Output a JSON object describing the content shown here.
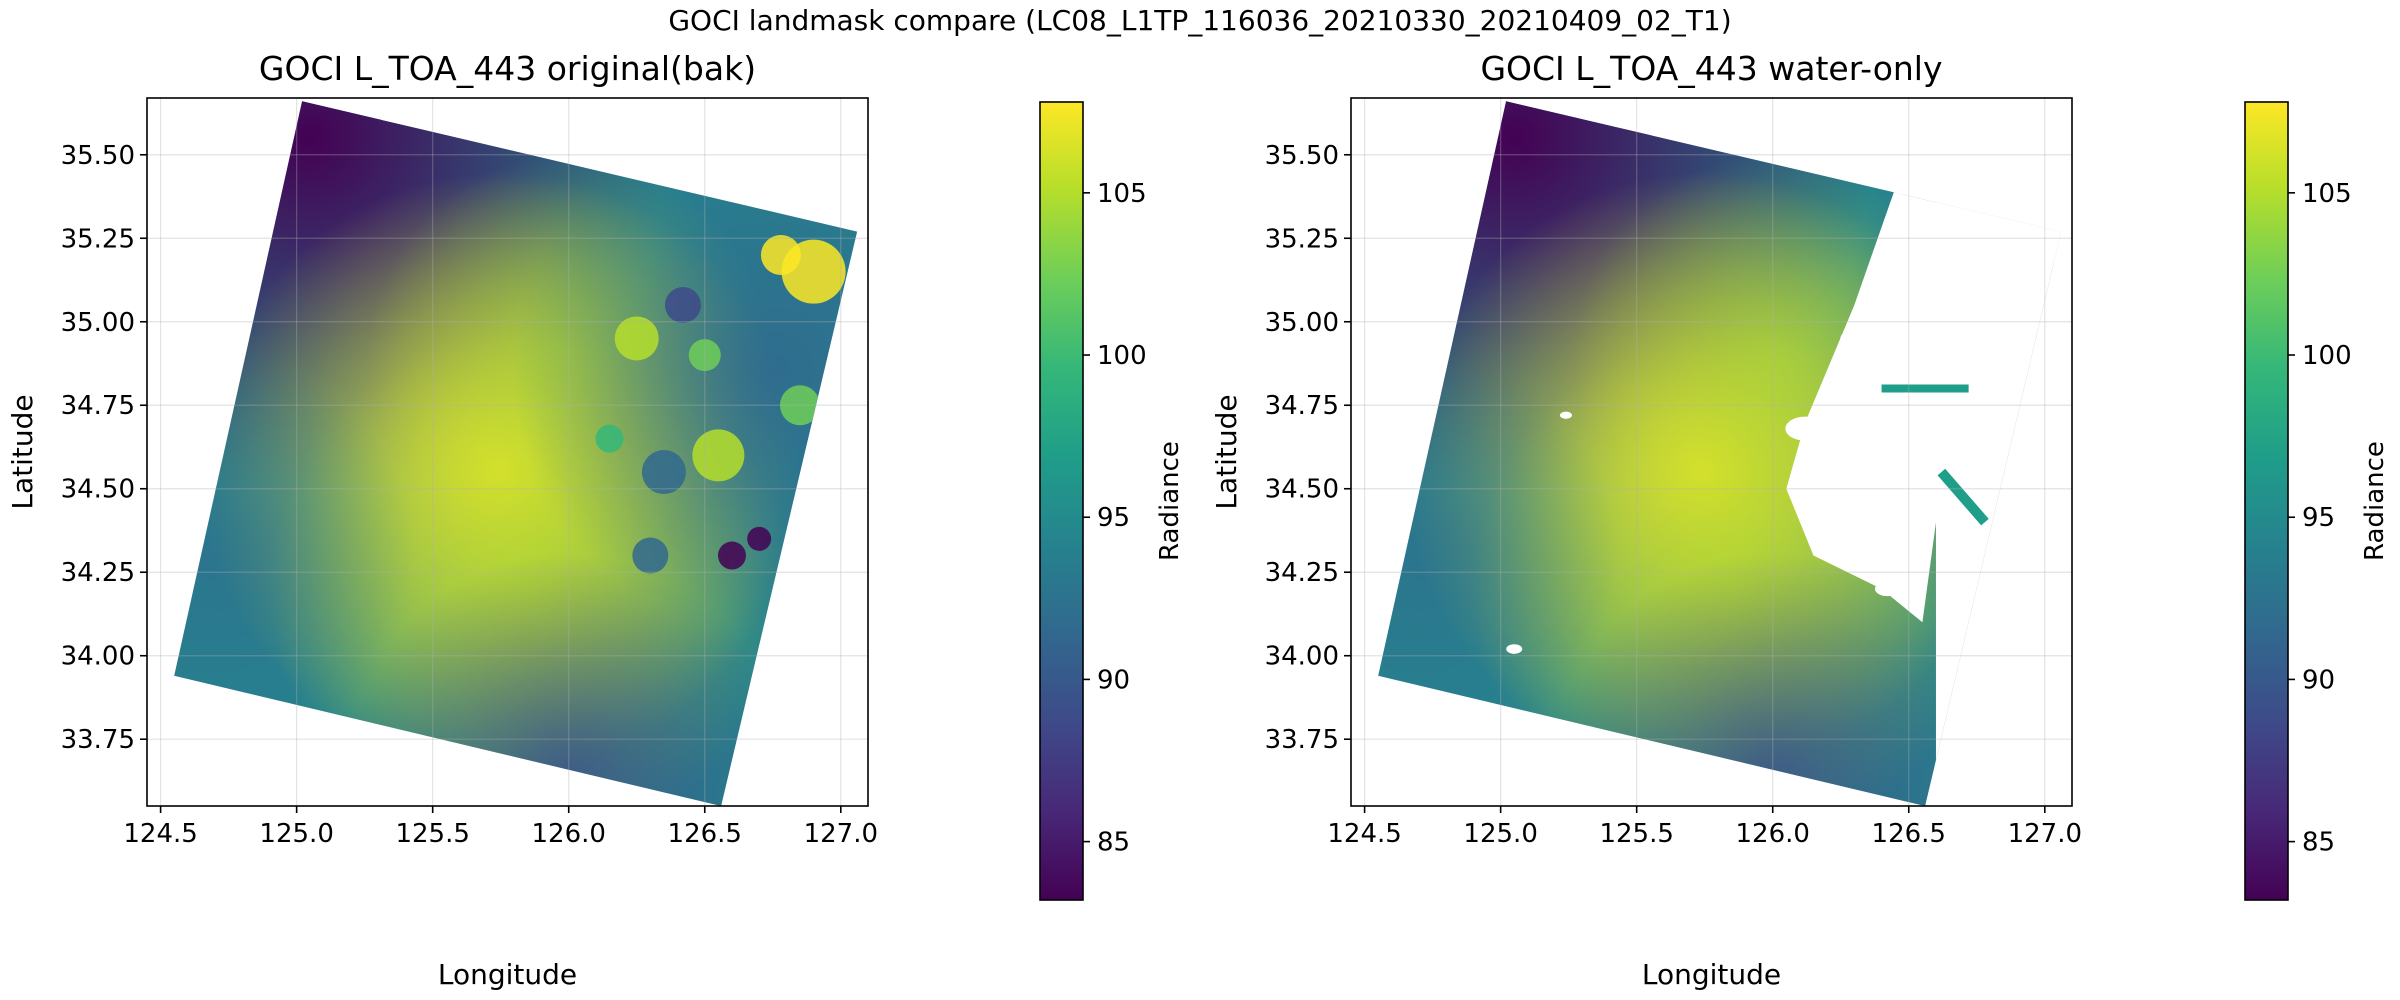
{
  "figure": {
    "suptitle": "GOCI landmask compare (LC08_L1TP_116036_20210330_20210409_02_T1)"
  },
  "colors": {
    "viridis": [
      "#440154",
      "#482878",
      "#3e4a89",
      "#31688e",
      "#26828e",
      "#1f9e89",
      "#35b779",
      "#6ece58",
      "#b5de2b",
      "#fde725"
    ],
    "background": "#ffffff",
    "mask": "#ffffff"
  },
  "chart_data": [
    {
      "type": "heatmap",
      "title": "GOCI L_TOA_443 original(bak)",
      "xlabel": "Longitude",
      "ylabel": "Latitude",
      "xlim": [
        124.45,
        127.1
      ],
      "ylim": [
        33.55,
        35.67
      ],
      "xticks": [
        124.5,
        125.0,
        125.5,
        126.0,
        126.5,
        127.0
      ],
      "xtick_labels": [
        "124.5",
        "125.0",
        "125.5",
        "126.0",
        "126.5",
        "127.0"
      ],
      "yticks": [
        33.75,
        34.0,
        34.25,
        34.5,
        34.75,
        35.0,
        35.25,
        35.5
      ],
      "ytick_labels": [
        "33.75",
        "34.00",
        "34.25",
        "34.50",
        "34.75",
        "35.00",
        "35.25",
        "35.50"
      ],
      "grid": true,
      "scene_corners": [
        [
          125.02,
          35.66
        ],
        [
          127.06,
          35.27
        ],
        [
          126.56,
          33.55
        ],
        [
          124.55,
          33.94
        ]
      ],
      "colorbar": {
        "label": "Radiance",
        "range": [
          83.2,
          107.8
        ],
        "ticks": [
          85,
          90,
          95,
          100,
          105
        ],
        "tick_labels": [
          "85",
          "90",
          "95",
          "100",
          "105"
        ]
      },
      "water_only": false
    },
    {
      "type": "heatmap",
      "title": "GOCI L_TOA_443 water-only",
      "xlabel": "Longitude",
      "ylabel": "Latitude",
      "xlim": [
        124.45,
        127.1
      ],
      "ylim": [
        33.55,
        35.67
      ],
      "xticks": [
        124.5,
        125.0,
        125.5,
        126.0,
        126.5,
        127.0
      ],
      "xtick_labels": [
        "124.5",
        "125.0",
        "125.5",
        "126.0",
        "126.5",
        "127.0"
      ],
      "yticks": [
        33.75,
        34.0,
        34.25,
        34.5,
        34.75,
        35.0,
        35.25,
        35.5
      ],
      "ytick_labels": [
        "33.75",
        "34.00",
        "34.25",
        "34.50",
        "34.75",
        "35.00",
        "35.25",
        "35.50"
      ],
      "grid": true,
      "scene_corners": [
        [
          125.02,
          35.66
        ],
        [
          127.06,
          35.27
        ],
        [
          126.56,
          33.55
        ],
        [
          124.55,
          33.94
        ]
      ],
      "colorbar": {
        "label": "Radiance",
        "range": [
          83.2,
          107.8
        ],
        "ticks": [
          85,
          90,
          95,
          100,
          105
        ],
        "tick_labels": [
          "85",
          "90",
          "95",
          "100",
          "105"
        ]
      },
      "water_only": true,
      "land_boundary": [
        [
          126.45,
          35.4
        ],
        [
          126.3,
          35.05
        ],
        [
          126.12,
          34.7
        ],
        [
          126.05,
          34.5
        ],
        [
          126.15,
          34.3
        ],
        [
          126.4,
          34.2
        ],
        [
          126.55,
          34.1
        ],
        [
          126.6,
          34.4
        ],
        [
          126.85,
          34.55
        ],
        [
          126.75,
          34.85
        ],
        [
          126.7,
          35.2
        ]
      ]
    }
  ]
}
